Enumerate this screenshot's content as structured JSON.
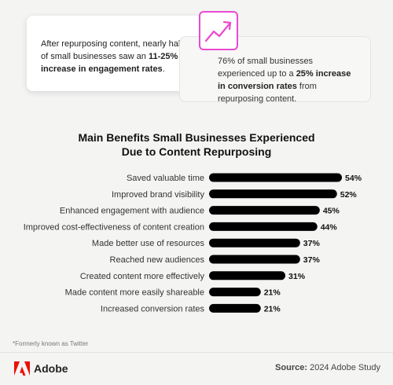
{
  "callouts": {
    "left": {
      "text_before": "After repurposing content, nearly half of small businesses saw an ",
      "highlight": "11-25% increase in engagement rates",
      "text_after": "."
    },
    "right": {
      "text_before": "76% of small businesses experienced up to a ",
      "highlight": "25% increase in conversion rates",
      "text_after": " from repurposing content."
    },
    "icon": "trending-up-icon",
    "icon_color": "#e94bd1"
  },
  "chart_data": {
    "type": "bar",
    "orientation": "horizontal",
    "title_line1": "Main Benefits Small Businesses Experienced",
    "title_line2": "Due to Content Repurposing",
    "categories": [
      "Saved valuable time",
      "Improved brand visibility",
      "Enhanced engagement with audience",
      "Improved cost-effectiveness of content creation",
      "Made better use of resources",
      "Reached new audiences",
      "Created content more effectively",
      "Made content more easily shareable",
      "Increased conversion rates"
    ],
    "values": [
      54,
      52,
      45,
      44,
      37,
      37,
      31,
      21,
      21
    ],
    "value_labels": [
      "54%",
      "52%",
      "45%",
      "44%",
      "37%",
      "37%",
      "31%",
      "21%",
      "21%"
    ],
    "bar_color": "#000000",
    "grid": false,
    "legend": "none"
  },
  "footer": {
    "footnote": "*Formerly known as Twitter",
    "brand": "Adobe",
    "brand_color": "#eb1000",
    "source_label": "Source:",
    "source_value": "2024 Adobe Study"
  }
}
